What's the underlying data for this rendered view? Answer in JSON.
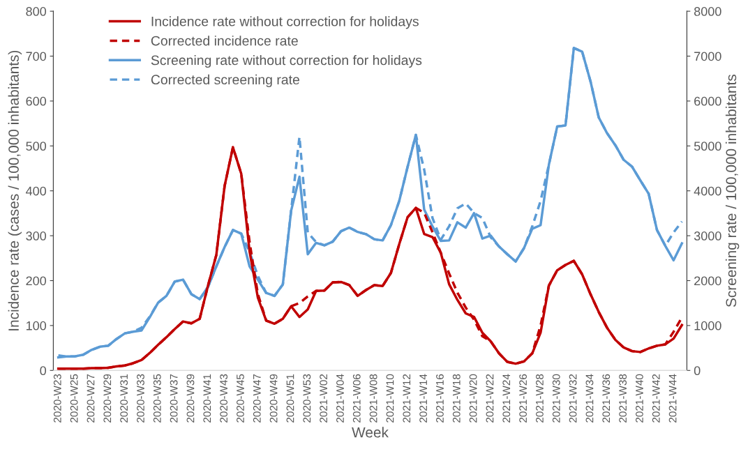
{
  "chart_data": {
    "type": "line",
    "xlabel": "Week",
    "ylabel": "Incidence rate (cases / 100,000 inhabitants)",
    "y2label": "Screening rate / 100,000 inhabitants",
    "categories": [
      "2020-W23",
      null,
      "2020-W25",
      null,
      "2020-W27",
      null,
      "2020-W29",
      null,
      "2020-W31",
      null,
      "2020-W33",
      null,
      "2020-W35",
      null,
      "2020-W37",
      null,
      "2020-W39",
      null,
      "2020-W41",
      null,
      "2020-W43",
      null,
      "2020-W45",
      null,
      "2020-W47",
      null,
      "2020-W49",
      null,
      "2020-W51",
      null,
      "2020-W53",
      null,
      "2021-W02",
      null,
      "2021-W04",
      null,
      "2021-W06",
      null,
      "2021-W08",
      null,
      "2021-W10",
      null,
      "2021-W12",
      null,
      "2021-W14",
      null,
      "2021-W16",
      null,
      "2021-W18",
      null,
      "2021-W20",
      null,
      "2021-W22",
      null,
      "2021-W24",
      null,
      "2021-W26",
      null,
      "2021-W28",
      null,
      "2021-W30",
      null,
      "2021-W32",
      null,
      "2021-W34",
      null,
      "2021-W36",
      null,
      "2021-W38",
      null,
      "2021-W40",
      null,
      "2021-W42",
      null,
      "2021-W44",
      null
    ],
    "series": [
      {
        "name": "Incidence rate without correction for holidays",
        "color": "#c00000",
        "line_style": "solid",
        "values": [
          4,
          4,
          4,
          4,
          5,
          5,
          6,
          9,
          11,
          16,
          23,
          39,
          57,
          74,
          92,
          109,
          105,
          115,
          189,
          257,
          411,
          497,
          438,
          265,
          162,
          111,
          104,
          115,
          143,
          119,
          136,
          177,
          178,
          196,
          197,
          190,
          166,
          179,
          190,
          188,
          217,
          281,
          341,
          362,
          304,
          297,
          262,
          192,
          157,
          127,
          119,
          84,
          65,
          38,
          19,
          15,
          20,
          38,
          84,
          189,
          223,
          235,
          244,
          214,
          170,
          130,
          95,
          68,
          51,
          43,
          41,
          49,
          55,
          58,
          71,
          101
        ]
      },
      {
        "name": "Corrected incidence rate",
        "color": "#c00000",
        "line_style": "dashed",
        "values": [
          4,
          4,
          4,
          4,
          5,
          5,
          6,
          9,
          11,
          16,
          23,
          39,
          57,
          74,
          92,
          109,
          105,
          115,
          189,
          257,
          411,
          497,
          438,
          286,
          170,
          111,
          104,
          115,
          143,
          150,
          165,
          177,
          178,
          196,
          197,
          190,
          166,
          179,
          190,
          188,
          217,
          281,
          341,
          362,
          351,
          308,
          262,
          216,
          173,
          140,
          113,
          76,
          65,
          38,
          19,
          15,
          20,
          38,
          100,
          189,
          223,
          235,
          244,
          214,
          170,
          130,
          95,
          68,
          51,
          43,
          41,
          49,
          55,
          58,
          86,
          118
        ]
      },
      {
        "name": "Screening rate without correction for holidays",
        "color": "#5b9bd5",
        "line_style": "solid",
        "axis": "y2",
        "values": [
          290,
          310,
          313,
          350,
          458,
          528,
          550,
          700,
          825,
          862,
          890,
          1186,
          1509,
          1660,
          1978,
          2022,
          1698,
          1590,
          1860,
          2318,
          2749,
          3127,
          3046,
          2318,
          2022,
          1725,
          1660,
          1914,
          3558,
          4313,
          2588,
          2841,
          2787,
          2868,
          3100,
          3181,
          3084,
          3035,
          2922,
          2895,
          3235,
          3774,
          4528,
          5245,
          3585,
          3208,
          2884,
          2895,
          3299,
          3181,
          3504,
          2938,
          3003,
          2760,
          2588,
          2426,
          2722,
          3154,
          3235,
          4582,
          5434,
          5456,
          7181,
          7100,
          6442,
          5633,
          5283,
          5013,
          4690,
          4539,
          4232,
          3935,
          3127,
          2776,
          2453,
          2830
        ]
      },
      {
        "name": "Corrected screening rate",
        "color": "#5b9bd5",
        "line_style": "dashed",
        "axis": "y2",
        "values": [
          334,
          310,
          313,
          350,
          458,
          528,
          550,
          700,
          825,
          862,
          950,
          1200,
          1509,
          1660,
          1978,
          2022,
          1698,
          1590,
          1860,
          2318,
          2749,
          3127,
          3046,
          2641,
          2102,
          1725,
          1660,
          1914,
          3558,
          5202,
          3073,
          2857,
          2787,
          2868,
          3100,
          3181,
          3084,
          3035,
          2922,
          2895,
          3235,
          3774,
          4528,
          5245,
          4474,
          3396,
          2911,
          3208,
          3612,
          3720,
          3504,
          3396,
          2965,
          2760,
          2588,
          2426,
          2722,
          3208,
          3774,
          4582,
          5434,
          5456,
          7181,
          7100,
          6442,
          5633,
          5283,
          5013,
          4690,
          4539,
          4232,
          3935,
          3127,
          2776,
          3073,
          3315
        ]
      }
    ],
    "ylim": [
      0,
      800
    ],
    "yticks": [
      0,
      100,
      200,
      300,
      400,
      500,
      600,
      700,
      800
    ],
    "y2lim": [
      0,
      8000
    ],
    "y2ticks": [
      0,
      1000,
      2000,
      3000,
      4000,
      5000,
      6000,
      7000,
      8000
    ],
    "legend": "top left",
    "grid": false
  }
}
